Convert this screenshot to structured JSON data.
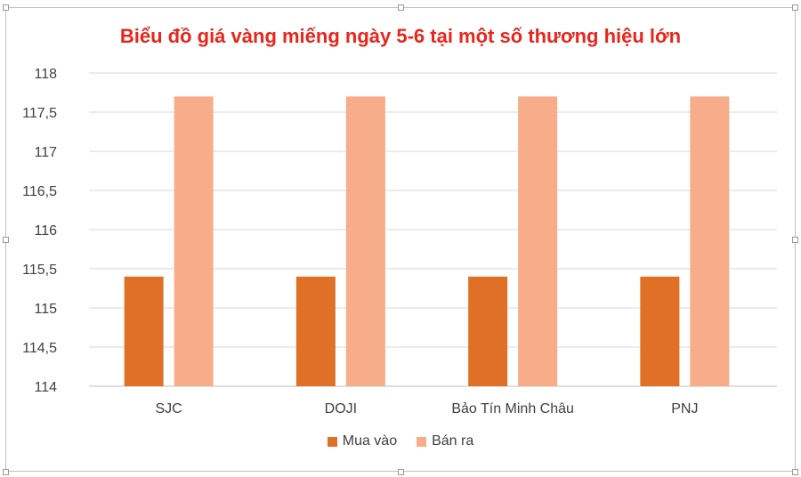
{
  "chart_data": {
    "type": "bar",
    "title": "Biểu đồ giá vàng miếng ngày 5-6 tại một số thương hiệu lớn",
    "categories": [
      "SJC",
      "DOJI",
      "Bảo Tín Minh Châu",
      "PNJ"
    ],
    "series": [
      {
        "name": "Mua vào",
        "color": "#e07025",
        "values": [
          115.4,
          115.4,
          115.4,
          115.4
        ]
      },
      {
        "name": "Bán ra",
        "color": "#f8ad8a",
        "values": [
          117.7,
          117.7,
          117.7,
          117.7
        ]
      }
    ],
    "ylim": [
      114,
      118
    ],
    "yticks": [
      "114",
      "114,5",
      "115",
      "115,5",
      "116",
      "116,5",
      "117",
      "117,5",
      "118"
    ],
    "grid": true,
    "legend_position": "bottom"
  }
}
